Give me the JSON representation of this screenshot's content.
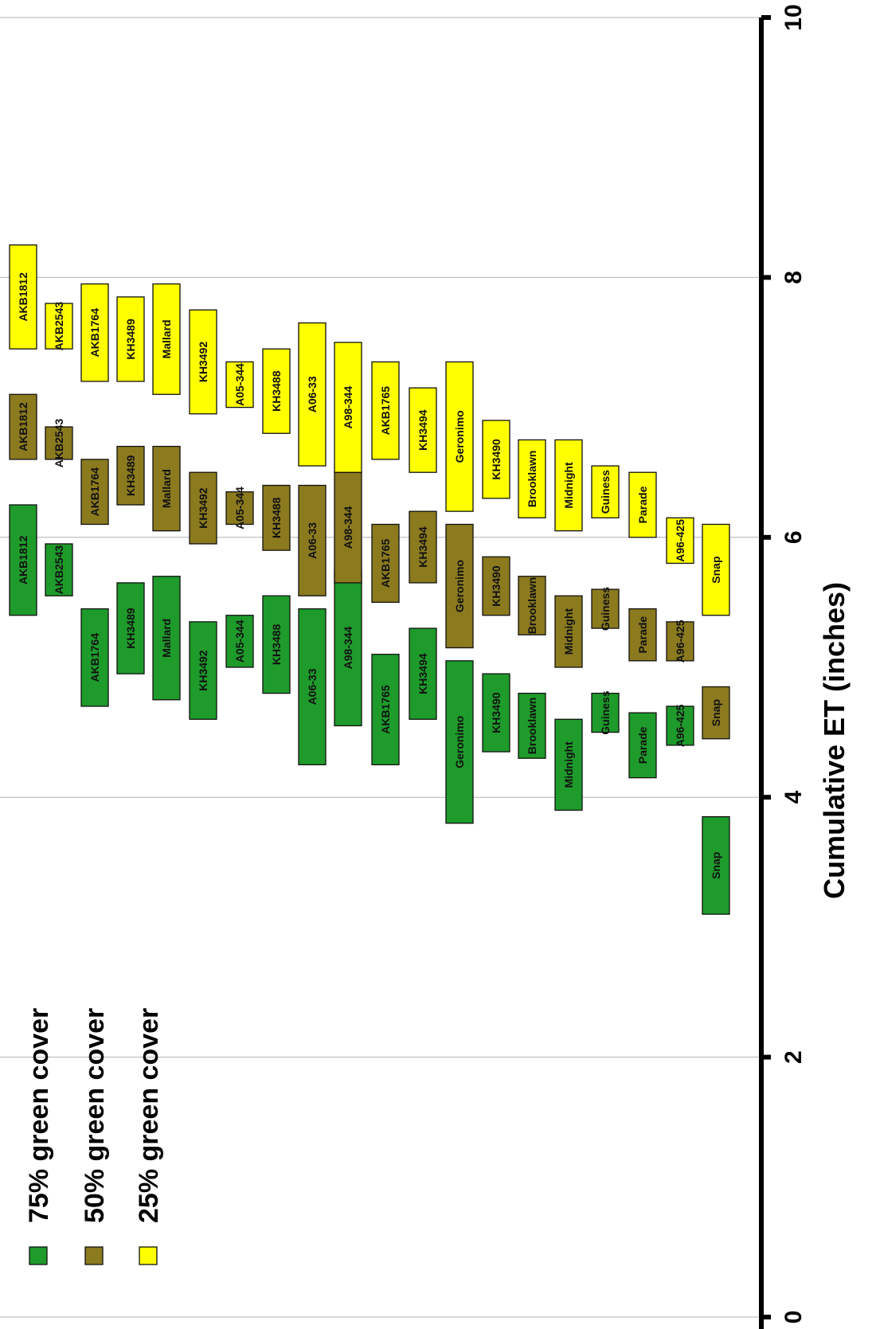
{
  "chart_data": {
    "type": "bar",
    "orientation": "floating-range, rotated 90 degrees",
    "xlabel": "Cumulative ET (inches)",
    "xlim": [
      0,
      10
    ],
    "ticks": [
      0,
      2,
      4,
      6,
      8,
      10
    ],
    "grid": true,
    "legend_position": "bottom-left (rotated)",
    "categories": [
      "AKB1812",
      "AKB2543",
      "AKB1764",
      "KH3489",
      "Mallard",
      "KH3492",
      "A05-344",
      "KH3488",
      "A06-33",
      "A98-344",
      "AKB1765",
      "KH3494",
      "Geronimo",
      "KH3490",
      "Brooklawn",
      "Midnight",
      "Guiness",
      "Parade",
      "A96-425",
      "Snap"
    ],
    "series": [
      {
        "name": "75% green cover",
        "color": "#1e9b2b",
        "bars": [
          {
            "label": "AKB1812",
            "min": 5.4,
            "max": 6.25
          },
          {
            "label": "AKB2543",
            "min": 5.55,
            "max": 5.95
          },
          {
            "label": "KH3489",
            "min": 4.95,
            "max": 5.65
          },
          {
            "label": "A05-344",
            "min": 5.0,
            "max": 5.4
          },
          {
            "label": "Mallard",
            "min": 4.75,
            "max": 5.7
          },
          {
            "label": "KH3488",
            "min": 4.8,
            "max": 5.55
          },
          {
            "label": "A98-344",
            "min": 4.55,
            "max": 5.75
          },
          {
            "label": "AKB1764",
            "min": 4.7,
            "max": 5.45
          },
          {
            "label": "KH3492",
            "min": 4.6,
            "max": 5.35
          },
          {
            "label": "KH3494",
            "min": 4.6,
            "max": 5.3
          },
          {
            "label": "A06-33",
            "min": 4.25,
            "max": 5.45
          },
          {
            "label": "AKB1765",
            "min": 4.25,
            "max": 5.1
          },
          {
            "label": "KH3490",
            "min": 4.35,
            "max": 4.95
          },
          {
            "label": "Guiness",
            "min": 4.5,
            "max": 4.8
          },
          {
            "label": "Brooklawn",
            "min": 4.3,
            "max": 4.8
          },
          {
            "label": "A96-425",
            "min": 4.4,
            "max": 4.7
          },
          {
            "label": "Geronimo",
            "min": 3.8,
            "max": 5.05
          },
          {
            "label": "Parade",
            "min": 4.15,
            "max": 4.65
          },
          {
            "label": "Midnight",
            "min": 3.9,
            "max": 4.6
          },
          {
            "label": "Snap",
            "min": 3.1,
            "max": 3.85
          }
        ]
      },
      {
        "name": "50% green cover",
        "color": "#8b7a1e",
        "bars": [
          {
            "label": "AKB1812",
            "min": 6.6,
            "max": 7.1
          },
          {
            "label": "AKB2543",
            "min": 6.6,
            "max": 6.85
          },
          {
            "label": "KH3489",
            "min": 6.25,
            "max": 6.7
          },
          {
            "label": "Mallard",
            "min": 6.05,
            "max": 6.7
          },
          {
            "label": "AKB1764",
            "min": 6.1,
            "max": 6.6
          },
          {
            "label": "A05-344",
            "min": 6.1,
            "max": 6.35
          },
          {
            "label": "KH3492",
            "min": 5.95,
            "max": 6.5
          },
          {
            "label": "KH3488",
            "min": 5.9,
            "max": 6.4
          },
          {
            "label": "A98-344",
            "min": 5.65,
            "max": 6.5
          },
          {
            "label": "A06-33",
            "min": 5.55,
            "max": 6.4
          },
          {
            "label": "KH3494",
            "min": 5.65,
            "max": 6.2
          },
          {
            "label": "AKB1765",
            "min": 5.5,
            "max": 6.1
          },
          {
            "label": "KH3490",
            "min": 5.4,
            "max": 5.85
          },
          {
            "label": "Geronimo",
            "min": 5.15,
            "max": 6.1
          },
          {
            "label": "Brooklawn",
            "min": 5.25,
            "max": 5.7
          },
          {
            "label": "Guiness",
            "min": 5.3,
            "max": 5.6
          },
          {
            "label": "Parade",
            "min": 5.05,
            "max": 5.45
          },
          {
            "label": "Midnight",
            "min": 5.0,
            "max": 5.55
          },
          {
            "label": "A96-425",
            "min": 5.05,
            "max": 5.35
          },
          {
            "label": "Snap",
            "min": 4.45,
            "max": 4.85
          }
        ]
      },
      {
        "name": "25% green cover",
        "color": "#ffff00",
        "bars": [
          {
            "label": "AKB1812",
            "min": 7.45,
            "max": 8.25
          },
          {
            "label": "AKB2543",
            "min": 7.45,
            "max": 7.8
          },
          {
            "label": "AKB1764",
            "min": 7.2,
            "max": 7.95
          },
          {
            "label": "KH3489",
            "min": 7.2,
            "max": 7.85
          },
          {
            "label": "Mallard",
            "min": 7.1,
            "max": 7.95
          },
          {
            "label": "KH3492",
            "min": 6.95,
            "max": 7.75
          },
          {
            "label": "A05-344",
            "min": 7.0,
            "max": 7.35
          },
          {
            "label": "KH3488",
            "min": 6.8,
            "max": 7.45
          },
          {
            "label": "A06-33",
            "min": 6.55,
            "max": 7.65
          },
          {
            "label": "A98-344",
            "min": 6.5,
            "max": 7.5
          },
          {
            "label": "AKB1765",
            "min": 6.6,
            "max": 7.35
          },
          {
            "label": "KH3494",
            "min": 6.5,
            "max": 7.15
          },
          {
            "label": "Geronimo",
            "min": 6.2,
            "max": 7.35
          },
          {
            "label": "KH3490",
            "min": 6.3,
            "max": 6.9
          },
          {
            "label": "Brooklawn",
            "min": 6.15,
            "max": 6.75
          },
          {
            "label": "Midnight",
            "min": 6.05,
            "max": 6.75
          },
          {
            "label": "Guiness",
            "min": 6.15,
            "max": 6.55
          },
          {
            "label": "Parade",
            "min": 6.0,
            "max": 6.5
          },
          {
            "label": "A96-425",
            "min": 5.8,
            "max": 6.15
          },
          {
            "label": "Snap",
            "min": 5.4,
            "max": 6.1
          }
        ]
      }
    ]
  }
}
